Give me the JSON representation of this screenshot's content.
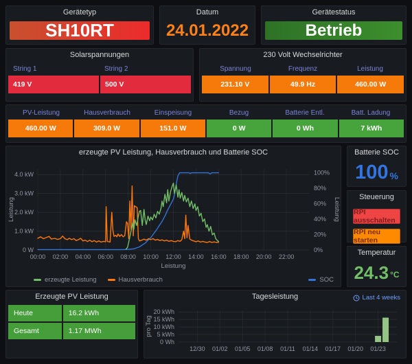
{
  "colors": {
    "panel_bg": "#181b1f",
    "orange_cell": "#f57a0a",
    "red_cell": "#e22b3c",
    "green_cell": "#47a33c",
    "header_blue": "#7b85db",
    "link_blue": "#6e9fff"
  },
  "header": {
    "device_type": {
      "title": "Gerätetyp",
      "value": "SH10RT",
      "bg": {
        "from": "#c8502f",
        "to": "#ec2b2b"
      }
    },
    "date": {
      "title": "Datum",
      "value": "24.01.2022"
    },
    "device_status": {
      "title": "Gerätestatus",
      "value": "Betrieb",
      "bg": {
        "from": "#2e7226",
        "to": "#3c8f2d"
      }
    }
  },
  "solar_voltages": {
    "title": "Solarspannungen",
    "columns": [
      "String 1",
      "String 2"
    ],
    "values": [
      "419 V",
      "500 V"
    ],
    "cell_bg": "#e22b3c"
  },
  "inverter": {
    "title": "230 Volt Wechselrichter",
    "columns": [
      "Spannung",
      "Frequenz",
      "Leistung"
    ],
    "values": [
      "231.10 V",
      "49.9 Hz",
      "460.00 W"
    ],
    "cell_bg": "#f57a0a"
  },
  "stats_row": {
    "cells": [
      {
        "label": "PV-Leistung",
        "value": "460.00 W",
        "bg": "#f57a0a"
      },
      {
        "label": "Hausverbrauch",
        "value": "309.0 W",
        "bg": "#f57a0a"
      },
      {
        "label": "Einspeisung",
        "value": "151.0 W",
        "bg": "#f57a0a"
      },
      {
        "label": "Bezug",
        "value": "0 W",
        "bg": "#47a33c"
      },
      {
        "label": "Batterie Entl.",
        "value": "0 Wh",
        "bg": "#47a33c"
      },
      {
        "label": "Batt. Ladung",
        "value": "7 kWh",
        "bg": "#47a33c"
      }
    ]
  },
  "battery_soc": {
    "title": "Batterie SOC",
    "value": "100",
    "unit": "%",
    "color": "#3375e0"
  },
  "steuerung": {
    "title": "Steuerung",
    "buttons": [
      {
        "label": "RPI ausschalten",
        "bg": "#ef4444",
        "fg": "#7e1d1d"
      },
      {
        "label": "RPI neu starten",
        "bg": "#ff8a00",
        "fg": "#7a2d00"
      }
    ]
  },
  "temperature": {
    "title": "Temperatur",
    "value": "24.3",
    "unit": "°C",
    "color": "#73bf69"
  },
  "pv_energy": {
    "title": "Erzeugte PV Leistung",
    "rows": [
      {
        "label": "Heute",
        "value": "16.2 kWh",
        "bg": "#469e3a"
      },
      {
        "label": "Gesamt",
        "value": "1.17 MWh",
        "bg": "#469e3a"
      }
    ]
  },
  "tagesleistung_badge": "Last 4 weeks",
  "chart_data": [
    {
      "type": "line",
      "title": "erzeugte PV Leistung, Hausverbrauch und Batterie SOC",
      "xlabel": "Leistung",
      "ylabel_left": "Leistung",
      "ylabel_right": "Leistung",
      "x_range_hours": [
        0,
        24
      ],
      "x_tick_values": [
        0,
        2,
        4,
        6,
        8,
        10,
        12,
        14,
        16,
        18,
        20,
        22
      ],
      "x_ticks": [
        "00:00",
        "02:00",
        "04:00",
        "06:00",
        "08:00",
        "10:00",
        "12:00",
        "14:00",
        "16:00",
        "18:00",
        "20:00",
        "22:00"
      ],
      "ylim_left": [
        0,
        4.3
      ],
      "y_grid_left_values": [
        0,
        1,
        2,
        3,
        4
      ],
      "y_ticks_left": [
        "0 W",
        "1.0 kW",
        "2.0 kW",
        "3.0 kW",
        "4.0 kW"
      ],
      "ylim_right": [
        0,
        105
      ],
      "y_grid_right_values": [
        0,
        20,
        40,
        60,
        80,
        100
      ],
      "y_ticks_right": [
        "0%",
        "20%",
        "40%",
        "60%",
        "80%",
        "100%"
      ],
      "series": [
        {
          "name": "SOC",
          "axis": "right",
          "color": "#3274d9",
          "points": [
            [
              0,
              0.5
            ],
            [
              7.5,
              0.5
            ],
            [
              8,
              0.8
            ],
            [
              8.5,
              1.5
            ],
            [
              9,
              4
            ],
            [
              9.5,
              9
            ],
            [
              10,
              16
            ],
            [
              10.5,
              26
            ],
            [
              11,
              37
            ],
            [
              11.25,
              44
            ],
            [
              11.5,
              52
            ],
            [
              11.75,
              59
            ],
            [
              12,
              66
            ],
            [
              12.1,
              72
            ],
            [
              12.2,
              80
            ],
            [
              12.3,
              89
            ],
            [
              12.4,
              96
            ],
            [
              12.55,
              100
            ],
            [
              13,
              100
            ],
            [
              13.4,
              100
            ],
            [
              13.5,
              99
            ],
            [
              13.6,
              100
            ],
            [
              14.5,
              100
            ],
            [
              15.1,
              100
            ],
            [
              15.25,
              98.5
            ],
            [
              15.4,
              100
            ],
            [
              16,
              100
            ]
          ]
        },
        {
          "name": "Hausverbrauch",
          "axis": "left",
          "color": "#ff780a",
          "points": [
            [
              0,
              0.62
            ],
            [
              0.25,
              0.7
            ],
            [
              0.5,
              0.6
            ],
            [
              0.75,
              0.66
            ],
            [
              1,
              0.72
            ],
            [
              1.2,
              0.58
            ],
            [
              1.5,
              0.62
            ],
            [
              1.75,
              0.56
            ],
            [
              2,
              0.6
            ],
            [
              2.2,
              0.74
            ],
            [
              2.4,
              0.6
            ],
            [
              2.6,
              0.55
            ],
            [
              2.8,
              0.62
            ],
            [
              3,
              0.55
            ],
            [
              3.2,
              0.6
            ],
            [
              3.4,
              0.5
            ],
            [
              3.6,
              0.55
            ],
            [
              3.8,
              0.62
            ],
            [
              4,
              0.48
            ],
            [
              4.2,
              0.52
            ],
            [
              4.4,
              0.45
            ],
            [
              4.6,
              0.52
            ],
            [
              4.8,
              0.44
            ],
            [
              5,
              0.5
            ],
            [
              5.2,
              0.42
            ],
            [
              5.4,
              0.48
            ],
            [
              5.6,
              0.42
            ],
            [
              5.8,
              0.46
            ],
            [
              6,
              0.44
            ],
            [
              6.05,
              2.3
            ],
            [
              6.15,
              0.46
            ],
            [
              6.4,
              0.42
            ],
            [
              6.55,
              2.0
            ],
            [
              6.65,
              1.05
            ],
            [
              6.75,
              0.72
            ],
            [
              6.9,
              0.78
            ],
            [
              7,
              0.7
            ],
            [
              7.1,
              0.85
            ],
            [
              7.25,
              0.72
            ],
            [
              7.4,
              0.82
            ],
            [
              7.55,
              0.7
            ],
            [
              7.7,
              0.76
            ],
            [
              7.85,
              1.5
            ],
            [
              7.95,
              1.4
            ],
            [
              8.05,
              0.6
            ],
            [
              8.15,
              2.6
            ],
            [
              8.25,
              1.1
            ],
            [
              8.35,
              3.4
            ],
            [
              8.45,
              0.75
            ],
            [
              8.55,
              2.35
            ],
            [
              8.65,
              2.3
            ],
            [
              8.8,
              2.25
            ],
            [
              8.9,
              0.6
            ],
            [
              9,
              0.48
            ],
            [
              9.2,
              0.52
            ],
            [
              9.4,
              0.58
            ],
            [
              9.6,
              0.52
            ],
            [
              9.8,
              0.6
            ],
            [
              10,
              0.55
            ],
            [
              10.2,
              0.6
            ],
            [
              10.4,
              0.52
            ],
            [
              10.6,
              0.56
            ],
            [
              10.8,
              0.5
            ],
            [
              11,
              0.54
            ],
            [
              11.2,
              0.48
            ],
            [
              11.4,
              0.52
            ],
            [
              11.6,
              0.46
            ],
            [
              11.8,
              0.5
            ],
            [
              12,
              0.46
            ],
            [
              12.2,
              0.44
            ],
            [
              12.4,
              0.5
            ],
            [
              12.6,
              0.46
            ],
            [
              12.75,
              0.55
            ],
            [
              12.9,
              1.0
            ],
            [
              13,
              0.6
            ],
            [
              13.1,
              1.85
            ],
            [
              13.2,
              0.65
            ],
            [
              13.3,
              1.3
            ],
            [
              13.45,
              0.58
            ],
            [
              13.6,
              0.52
            ],
            [
              13.8,
              0.48
            ],
            [
              14,
              0.44
            ],
            [
              14.2,
              0.48
            ],
            [
              14.4,
              0.42
            ],
            [
              14.6,
              0.46
            ],
            [
              14.8,
              0.42
            ],
            [
              15,
              0.4
            ],
            [
              15.2,
              0.45
            ],
            [
              15.4,
              0.4
            ],
            [
              15.6,
              0.43
            ],
            [
              15.8,
              0.4
            ],
            [
              16,
              0.41
            ]
          ]
        },
        {
          "name": "erzeugte Leistung",
          "axis": "left",
          "color": "#73bf69",
          "points": [
            [
              7.8,
              0.04
            ],
            [
              7.95,
              0.15
            ],
            [
              8.1,
              0.55
            ],
            [
              8.25,
              1.0
            ],
            [
              8.4,
              1.45
            ],
            [
              8.5,
              1.1
            ],
            [
              8.6,
              1.6
            ],
            [
              8.75,
              1.3
            ],
            [
              8.9,
              1.8
            ],
            [
              9,
              2.05
            ],
            [
              9.1,
              2.1
            ],
            [
              9.25,
              1.3
            ],
            [
              9.4,
              2.15
            ],
            [
              9.5,
              1.6
            ],
            [
              9.6,
              1.35
            ],
            [
              9.75,
              1.8
            ],
            [
              9.9,
              1.55
            ],
            [
              10,
              1.75
            ],
            [
              10.15,
              1.6
            ],
            [
              10.3,
              1.9
            ],
            [
              10.45,
              1.7
            ],
            [
              10.6,
              2.05
            ],
            [
              10.75,
              1.9
            ],
            [
              10.9,
              2.2
            ],
            [
              11,
              2.6
            ],
            [
              11.1,
              2.3
            ],
            [
              11.25,
              2.95
            ],
            [
              11.4,
              2.5
            ],
            [
              11.5,
              3.2
            ],
            [
              11.6,
              2.6
            ],
            [
              11.75,
              3.1
            ],
            [
              11.9,
              3.4
            ],
            [
              12,
              3.55
            ],
            [
              12.1,
              3.0
            ],
            [
              12.25,
              3.45
            ],
            [
              12.4,
              2.8
            ],
            [
              12.5,
              3.2
            ],
            [
              12.6,
              2.75
            ],
            [
              12.75,
              3.05
            ],
            [
              12.9,
              2.6
            ],
            [
              13,
              2.9
            ],
            [
              13.15,
              2.55
            ],
            [
              13.3,
              2.75
            ],
            [
              13.45,
              2.3
            ],
            [
              13.6,
              2.6
            ],
            [
              13.75,
              2.2
            ],
            [
              13.9,
              2.45
            ],
            [
              14,
              2.1
            ],
            [
              14.15,
              2.3
            ],
            [
              14.3,
              1.8
            ],
            [
              14.45,
              1.95
            ],
            [
              14.6,
              1.5
            ],
            [
              14.75,
              1.65
            ],
            [
              14.9,
              1.2
            ],
            [
              15,
              1.35
            ],
            [
              15.15,
              1.0
            ],
            [
              15.3,
              1.25
            ],
            [
              15.45,
              0.8
            ],
            [
              15.6,
              0.9
            ],
            [
              15.75,
              0.6
            ],
            [
              15.9,
              0.5
            ],
            [
              16,
              0.45
            ]
          ]
        }
      ],
      "legend_left": [
        {
          "name": "erzeugte Leistung",
          "color": "#73bf69"
        },
        {
          "name": "Hausverbrauch",
          "color": "#ff780a"
        }
      ],
      "legend_right": [
        {
          "name": "SOC",
          "color": "#3274d9"
        }
      ]
    },
    {
      "type": "bar",
      "title": "Tagesleistung",
      "ylabel": "pro Tag",
      "ylim": [
        0,
        21
      ],
      "y_grid_values": [
        0,
        5,
        10,
        15,
        20
      ],
      "y_ticks": [
        "0 Wh",
        "5 kWh",
        "10 kWh",
        "15 kWh",
        "20 kWh"
      ],
      "x_domain_days": [
        -0.5,
        28.5
      ],
      "x_tick_days": [
        2,
        5,
        8,
        11,
        14,
        17,
        20,
        23,
        26
      ],
      "x_ticks": [
        "12/30",
        "01/02",
        "01/05",
        "01/08",
        "01/11",
        "01/14",
        "01/17",
        "01/20",
        "01/23"
      ],
      "bars": [
        {
          "label": "01/23",
          "day": 26,
          "value": 4.1
        },
        {
          "label": "01/24",
          "day": 27,
          "value": 16.2
        }
      ],
      "bar_color": "#95c584"
    }
  ]
}
